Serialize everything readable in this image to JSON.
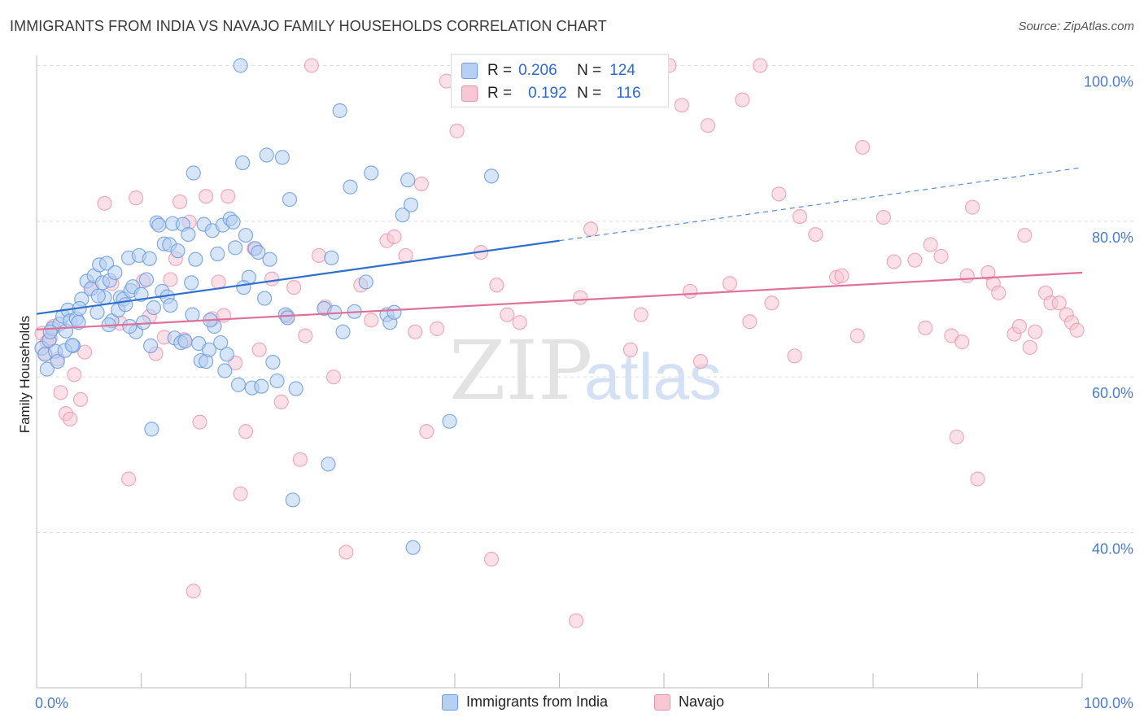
{
  "title": "IMMIGRANTS FROM INDIA VS NAVAJO FAMILY HOUSEHOLDS CORRELATION CHART",
  "source": "Source: ZipAtlas.com",
  "watermark": {
    "zip": "ZIP",
    "atlas": "atlas"
  },
  "legend": {
    "r_label": "R =",
    "n_label": "N =",
    "series1": {
      "r": "0.206",
      "n": "124"
    },
    "series2": {
      "r": "0.192",
      "n": "116"
    }
  },
  "bottom_legend": {
    "series1": "Immigrants from India",
    "series2": "Navajo"
  },
  "colors": {
    "blue_fill": "#b7cff2",
    "blue_stroke": "#6d9de0",
    "blue_line": "#2f6fce",
    "pink_fill": "#f8c7d4",
    "pink_stroke": "#ec91ab",
    "pink_line": "#e0709a",
    "tick_label": "#4a7cc9"
  },
  "chart_data": {
    "type": "scatter",
    "title": "IMMIGRANTS FROM INDIA VS NAVAJO FAMILY HOUSEHOLDS CORRELATION CHART",
    "xlabel": "",
    "ylabel": "Family Households",
    "xlim": [
      0,
      100
    ],
    "ylim": [
      20,
      102
    ],
    "x_tick_labels": [
      "0.0%",
      "100.0%"
    ],
    "y_ticks": [
      40,
      60,
      80,
      100
    ],
    "y_tick_labels": [
      "40.0%",
      "60.0%",
      "80.0%",
      "100.0%"
    ],
    "grid": true,
    "legend_position": "top-center",
    "series": [
      {
        "name": "Immigrants from India",
        "r": 0.206,
        "n": 124,
        "trend": {
          "x0": 0,
          "y0": 68.1,
          "x1": 50,
          "y1": 77.5,
          "dashed_to_x": 100,
          "dashed_to_y": 86.9
        },
        "points": [
          [
            0.5,
            63.7
          ],
          [
            0.8,
            62.9
          ],
          [
            1.0,
            61.0
          ],
          [
            1.2,
            64.7
          ],
          [
            1.5,
            66.2
          ],
          [
            1.8,
            63.3
          ],
          [
            2.0,
            62.0
          ],
          [
            2.2,
            66.8
          ],
          [
            2.5,
            67.8
          ],
          [
            2.8,
            65.9
          ],
          [
            3.0,
            68.6
          ],
          [
            3.2,
            67.2
          ],
          [
            3.5,
            64.0
          ],
          [
            3.8,
            67.5
          ],
          [
            4.0,
            67.0
          ],
          [
            4.3,
            70.0
          ],
          [
            4.8,
            72.3
          ],
          [
            5.2,
            71.3
          ],
          [
            5.5,
            73.0
          ],
          [
            5.8,
            68.3
          ],
          [
            6.0,
            74.4
          ],
          [
            6.3,
            72.1
          ],
          [
            6.5,
            70.2
          ],
          [
            6.7,
            74.6
          ],
          [
            7.0,
            72.4
          ],
          [
            7.2,
            67.2
          ],
          [
            7.5,
            73.4
          ],
          [
            7.8,
            68.6
          ],
          [
            8.0,
            70.2
          ],
          [
            8.3,
            70.0
          ],
          [
            8.5,
            69.3
          ],
          [
            8.8,
            75.3
          ],
          [
            9.0,
            71.1
          ],
          [
            9.2,
            71.6
          ],
          [
            9.5,
            65.8
          ],
          [
            9.8,
            75.6
          ],
          [
            10.0,
            70.6
          ],
          [
            10.2,
            67.0
          ],
          [
            10.5,
            72.5
          ],
          [
            10.8,
            75.2
          ],
          [
            11.0,
            53.3
          ],
          [
            11.2,
            68.9
          ],
          [
            11.5,
            79.8
          ],
          [
            11.7,
            79.5
          ],
          [
            12.0,
            71.0
          ],
          [
            12.2,
            77.1
          ],
          [
            12.5,
            70.3
          ],
          [
            12.7,
            77.0
          ],
          [
            13.0,
            79.7
          ],
          [
            13.2,
            65.0
          ],
          [
            13.5,
            76.2
          ],
          [
            13.8,
            64.4
          ],
          [
            14.0,
            79.6
          ],
          [
            14.2,
            64.6
          ],
          [
            14.5,
            78.3
          ],
          [
            14.8,
            72.1
          ],
          [
            15.0,
            86.2
          ],
          [
            15.2,
            75.1
          ],
          [
            15.5,
            64.3
          ],
          [
            15.7,
            62.1
          ],
          [
            16.0,
            79.6
          ],
          [
            16.2,
            62.0
          ],
          [
            16.5,
            63.5
          ],
          [
            16.8,
            78.8
          ],
          [
            17.0,
            66.5
          ],
          [
            17.3,
            75.8
          ],
          [
            17.6,
            64.4
          ],
          [
            17.8,
            79.5
          ],
          [
            18.0,
            60.8
          ],
          [
            18.2,
            62.9
          ],
          [
            18.5,
            80.3
          ],
          [
            18.8,
            79.9
          ],
          [
            19.0,
            76.6
          ],
          [
            19.3,
            59.0
          ],
          [
            19.5,
            100.0
          ],
          [
            19.7,
            87.5
          ],
          [
            20.0,
            78.2
          ],
          [
            20.3,
            72.8
          ],
          [
            20.6,
            58.6
          ],
          [
            20.9,
            76.5
          ],
          [
            21.2,
            76.0
          ],
          [
            21.5,
            58.8
          ],
          [
            22.0,
            88.5
          ],
          [
            22.3,
            75.1
          ],
          [
            22.6,
            61.9
          ],
          [
            23.0,
            59.5
          ],
          [
            23.5,
            88.2
          ],
          [
            23.8,
            68.0
          ],
          [
            24.0,
            67.6
          ],
          [
            24.2,
            82.8
          ],
          [
            24.5,
            44.2
          ],
          [
            24.8,
            58.5
          ],
          [
            27.5,
            68.8
          ],
          [
            27.9,
            48.8
          ],
          [
            28.2,
            75.3
          ],
          [
            28.5,
            68.3
          ],
          [
            29.0,
            94.2
          ],
          [
            29.3,
            65.8
          ],
          [
            30.0,
            84.4
          ],
          [
            30.4,
            68.4
          ],
          [
            31.5,
            72.2
          ],
          [
            32.0,
            86.2
          ],
          [
            33.5,
            68.0
          ],
          [
            33.8,
            67.0
          ],
          [
            34.2,
            68.3
          ],
          [
            35.0,
            80.8
          ],
          [
            35.5,
            85.3
          ],
          [
            35.8,
            82.1
          ],
          [
            36.0,
            38.1
          ],
          [
            39.5,
            54.3
          ],
          [
            43.5,
            85.8
          ],
          [
            1.3,
            65.8
          ],
          [
            2.7,
            63.4
          ],
          [
            3.4,
            64.1
          ],
          [
            4.1,
            68.8
          ],
          [
            5.9,
            70.4
          ],
          [
            6.9,
            66.7
          ],
          [
            8.9,
            66.5
          ],
          [
            10.9,
            64.0
          ],
          [
            12.8,
            69.2
          ],
          [
            14.9,
            68.0
          ],
          [
            16.6,
            67.3
          ],
          [
            19.8,
            71.5
          ],
          [
            21.8,
            70.1
          ]
        ]
      },
      {
        "name": "Navajo",
        "r": 0.192,
        "n": 116,
        "trend": {
          "x0": 0,
          "y0": 66.1,
          "x1": 100,
          "y1": 73.4
        },
        "points": [
          [
            0.5,
            65.6
          ],
          [
            0.8,
            63.0
          ],
          [
            1.0,
            64.5
          ],
          [
            1.3,
            65.0
          ],
          [
            1.6,
            66.5
          ],
          [
            2.0,
            62.3
          ],
          [
            2.3,
            58.0
          ],
          [
            2.8,
            55.3
          ],
          [
            3.2,
            54.6
          ],
          [
            3.6,
            60.3
          ],
          [
            4.2,
            57.1
          ],
          [
            4.6,
            63.2
          ],
          [
            5.3,
            71.5
          ],
          [
            6.5,
            82.3
          ],
          [
            7.2,
            72.0
          ],
          [
            8.0,
            66.9
          ],
          [
            8.8,
            46.9
          ],
          [
            9.5,
            83.0
          ],
          [
            10.2,
            72.3
          ],
          [
            10.8,
            67.8
          ],
          [
            11.4,
            63.0
          ],
          [
            12.2,
            65.1
          ],
          [
            12.8,
            72.5
          ],
          [
            13.3,
            75.2
          ],
          [
            13.7,
            82.5
          ],
          [
            14.1,
            64.8
          ],
          [
            14.6,
            79.9
          ],
          [
            15.0,
            32.5
          ],
          [
            15.6,
            54.2
          ],
          [
            16.2,
            83.2
          ],
          [
            16.8,
            67.5
          ],
          [
            17.4,
            72.2
          ],
          [
            17.9,
            67.9
          ],
          [
            18.3,
            83.2
          ],
          [
            19.0,
            61.8
          ],
          [
            19.5,
            45.0
          ],
          [
            20.0,
            53.0
          ],
          [
            20.8,
            76.5
          ],
          [
            21.3,
            63.5
          ],
          [
            22.5,
            72.6
          ],
          [
            23.4,
            56.8
          ],
          [
            24.0,
            67.8
          ],
          [
            24.6,
            71.5
          ],
          [
            25.2,
            49.4
          ],
          [
            25.7,
            65.3
          ],
          [
            26.3,
            100.0
          ],
          [
            27.0,
            75.6
          ],
          [
            27.6,
            69.0
          ],
          [
            28.4,
            60.0
          ],
          [
            29.6,
            37.5
          ],
          [
            31.0,
            71.8
          ],
          [
            32.0,
            67.3
          ],
          [
            33.5,
            77.5
          ],
          [
            34.2,
            78.0
          ],
          [
            35.3,
            75.6
          ],
          [
            36.2,
            65.8
          ],
          [
            36.8,
            84.8
          ],
          [
            37.3,
            53.0
          ],
          [
            38.3,
            66.2
          ],
          [
            39.2,
            98.0
          ],
          [
            40.2,
            91.6
          ],
          [
            41.5,
            100.0
          ],
          [
            42.5,
            76.0
          ],
          [
            43.5,
            36.6
          ],
          [
            44.0,
            71.8
          ],
          [
            45.0,
            68.0
          ],
          [
            46.2,
            67.0
          ],
          [
            51.6,
            28.7
          ],
          [
            52.0,
            70.2
          ],
          [
            53.0,
            79.0
          ],
          [
            56.8,
            63.5
          ],
          [
            57.8,
            68.0
          ],
          [
            60.5,
            100.0
          ],
          [
            61.7,
            94.9
          ],
          [
            62.5,
            71.0
          ],
          [
            63.5,
            62.0
          ],
          [
            64.2,
            92.3
          ],
          [
            66.3,
            72.0
          ],
          [
            67.5,
            95.6
          ],
          [
            68.2,
            67.1
          ],
          [
            69.2,
            100.0
          ],
          [
            70.3,
            69.5
          ],
          [
            71.0,
            83.5
          ],
          [
            72.5,
            62.7
          ],
          [
            73.0,
            80.6
          ],
          [
            74.5,
            78.3
          ],
          [
            76.5,
            72.8
          ],
          [
            77.0,
            73.0
          ],
          [
            78.5,
            65.3
          ],
          [
            79.0,
            89.5
          ],
          [
            81.0,
            80.5
          ],
          [
            82.0,
            74.8
          ],
          [
            84.0,
            75.0
          ],
          [
            85.0,
            66.3
          ],
          [
            85.5,
            77.0
          ],
          [
            86.5,
            75.5
          ],
          [
            87.5,
            65.3
          ],
          [
            88.0,
            52.3
          ],
          [
            88.5,
            64.5
          ],
          [
            89.0,
            73.0
          ],
          [
            89.5,
            81.8
          ],
          [
            90.0,
            46.9
          ],
          [
            91.0,
            73.4
          ],
          [
            91.5,
            72.0
          ],
          [
            92.0,
            70.8
          ],
          [
            93.5,
            65.5
          ],
          [
            94.0,
            66.5
          ],
          [
            94.5,
            78.2
          ],
          [
            95.0,
            63.8
          ],
          [
            95.5,
            65.8
          ],
          [
            96.5,
            70.8
          ],
          [
            97.0,
            69.5
          ],
          [
            97.8,
            69.5
          ],
          [
            98.5,
            68.0
          ],
          [
            99.0,
            67.0
          ],
          [
            99.5,
            66.0
          ]
        ]
      }
    ]
  }
}
